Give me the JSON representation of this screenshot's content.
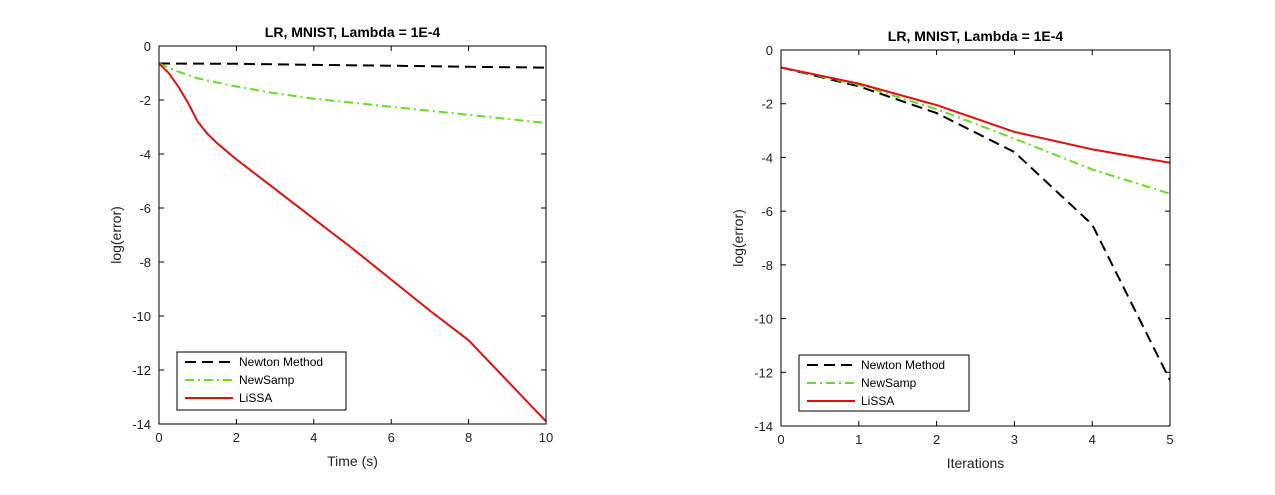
{
  "chart_data": [
    {
      "type": "line",
      "title": "LR, MNIST, Lambda = 1E-4",
      "xlabel": "Time (s)",
      "ylabel": "log(error)",
      "xlim": [
        0,
        10
      ],
      "ylim": [
        -14,
        0
      ],
      "xticks": [
        0,
        2,
        4,
        6,
        8,
        10
      ],
      "yticks": [
        0,
        -2,
        -4,
        -6,
        -8,
        -10,
        -12,
        -14
      ],
      "legend_position": "bottom-left",
      "series": [
        {
          "name": "Newton Method",
          "color": "#000000",
          "dash": "dashed",
          "x": [
            0,
            2,
            4,
            6,
            8,
            10
          ],
          "y": [
            -0.65,
            -0.66,
            -0.7,
            -0.73,
            -0.77,
            -0.8
          ]
        },
        {
          "name": "NewSamp",
          "color": "#66dd22",
          "dash": "dashdot",
          "x": [
            0,
            0.5,
            1,
            2,
            3,
            4,
            5,
            6,
            7,
            8,
            9,
            10
          ],
          "y": [
            -0.65,
            -0.95,
            -1.2,
            -1.5,
            -1.75,
            -1.95,
            -2.1,
            -2.25,
            -2.4,
            -2.55,
            -2.7,
            -2.85
          ]
        },
        {
          "name": "LiSSA",
          "color": "#dd1111",
          "dash": "solid",
          "x": [
            0,
            0.25,
            0.5,
            0.75,
            1,
            1.25,
            1.5,
            2,
            3,
            4,
            5,
            6,
            7,
            8,
            9,
            10
          ],
          "y": [
            -0.65,
            -1.0,
            -1.5,
            -2.1,
            -2.8,
            -3.25,
            -3.6,
            -4.2,
            -5.3,
            -6.4,
            -7.5,
            -8.65,
            -9.8,
            -10.9,
            -12.4,
            -13.9
          ]
        }
      ]
    },
    {
      "type": "line",
      "title": "LR, MNIST, Lambda = 1E-4",
      "xlabel": "Iterations",
      "ylabel": "log(error)",
      "xlim": [
        0,
        5
      ],
      "ylim": [
        -14,
        0
      ],
      "xticks": [
        0,
        1,
        2,
        3,
        4,
        5
      ],
      "yticks": [
        0,
        -2,
        -4,
        -6,
        -8,
        -10,
        -12,
        -14
      ],
      "legend_position": "bottom-left",
      "series": [
        {
          "name": "Newton Method",
          "color": "#000000",
          "dash": "dashed",
          "x": [
            0,
            1,
            2,
            3,
            4,
            5
          ],
          "y": [
            -0.65,
            -1.35,
            -2.35,
            -3.8,
            -6.5,
            -12.3
          ]
        },
        {
          "name": "NewSamp",
          "color": "#66dd22",
          "dash": "dashdot",
          "x": [
            0,
            1,
            2,
            3,
            4,
            5
          ],
          "y": [
            -0.65,
            -1.3,
            -2.2,
            -3.3,
            -4.45,
            -5.35
          ]
        },
        {
          "name": "LiSSA",
          "color": "#dd1111",
          "dash": "solid",
          "x": [
            0,
            1,
            2,
            3,
            4,
            5
          ],
          "y": [
            -0.65,
            -1.25,
            -2.05,
            -3.05,
            -3.7,
            -4.2
          ]
        }
      ]
    }
  ]
}
